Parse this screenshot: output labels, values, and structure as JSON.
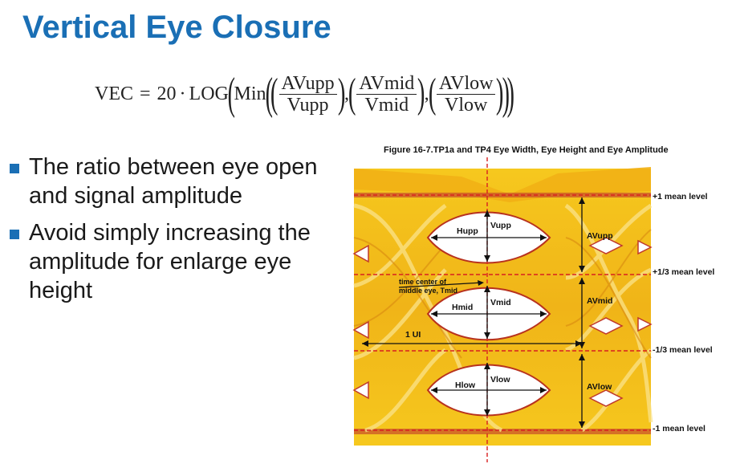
{
  "slide": {
    "title": "Vertical Eye Closure",
    "formula": {
      "lhs": "VEC",
      "equals": "=",
      "coefficient": "20",
      "dot": "·",
      "log": "LOG",
      "min": "Min",
      "terms": [
        {
          "num": "AVupp",
          "den": "Vupp"
        },
        {
          "num": "AVmid",
          "den": "Vmid"
        },
        {
          "num": "AVlow",
          "den": "Vlow"
        }
      ]
    },
    "bullets": [
      "The ratio between eye open and signal amplitude",
      "Avoid simply increasing the amplitude for enlarge eye height"
    ]
  },
  "figure": {
    "caption": "Figure 16-7.TP1a and TP4 Eye Width, Eye Height and Eye Amplitude",
    "level_labels": [
      "+1 mean level",
      "+1/3 mean level",
      "-1/3 mean level",
      "-1 mean level"
    ],
    "labels": {
      "hupp": "Hupp",
      "vupp": "Vupp",
      "hmid": "Hmid",
      "vmid": "Vmid",
      "hlow": "Hlow",
      "vlow": "Vlow",
      "avupp": "AVupp",
      "avmid": "AVmid",
      "avlow": "AVlow",
      "tmid": "time center of middle eye, Tmid",
      "tmid_line1": "time center of",
      "tmid_line2": "middle eye, Tmid",
      "ui": "1 UI"
    },
    "colors": {
      "eye": "#f4c21c",
      "eye_dark": "#d98a10",
      "guide": "#d82020",
      "arrow": "#111111"
    }
  }
}
